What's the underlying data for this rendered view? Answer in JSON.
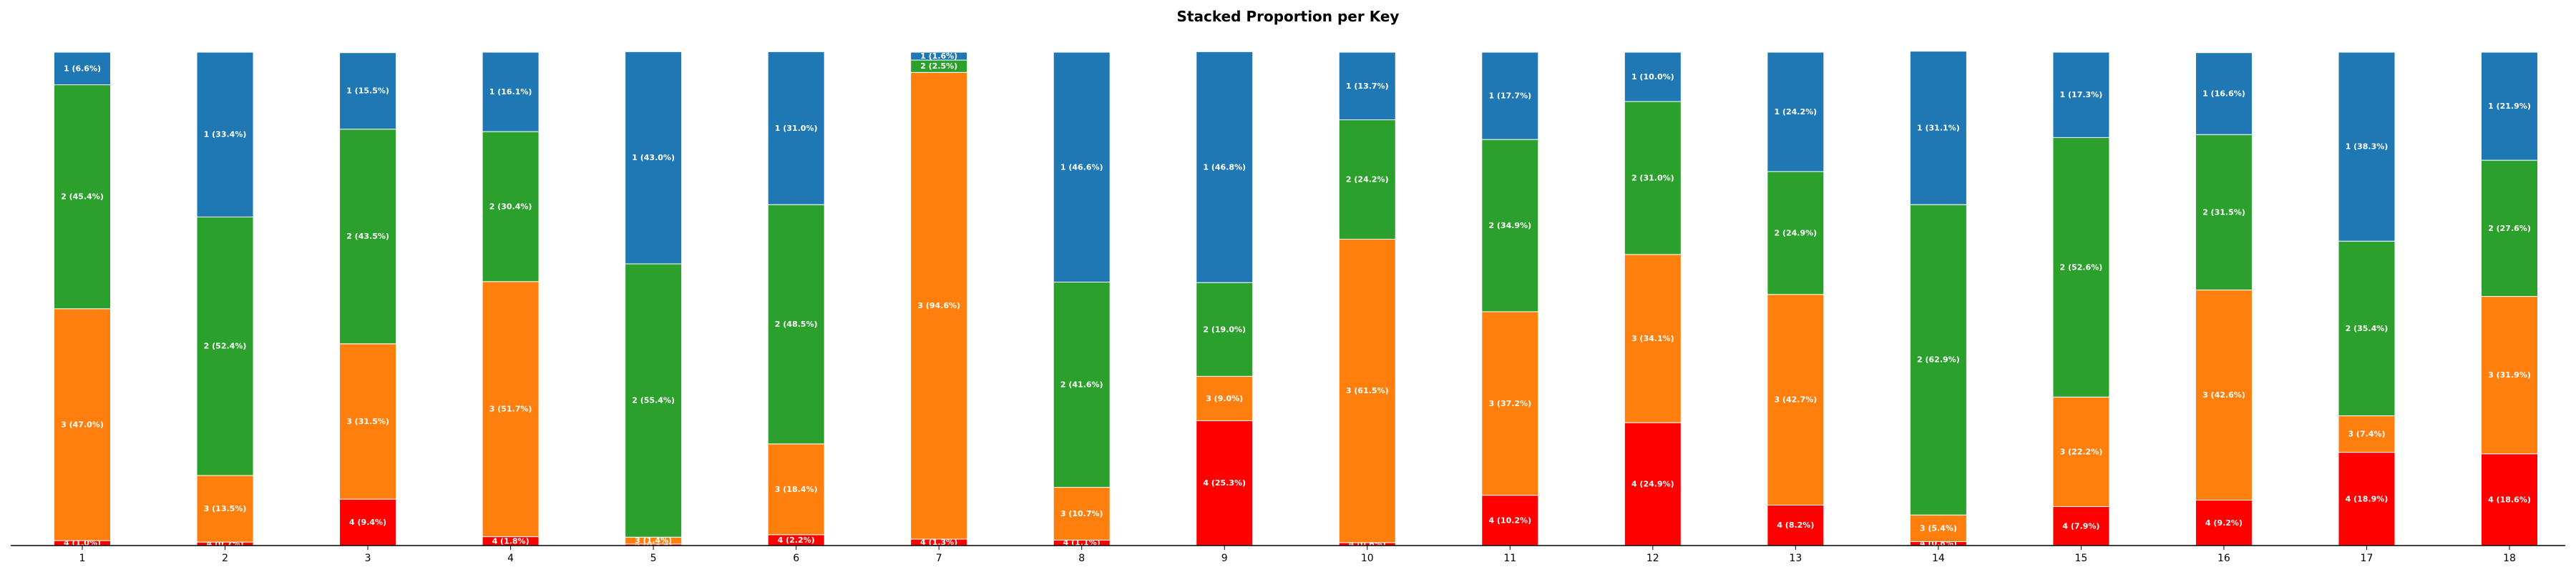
{
  "chart_data": {
    "type": "bar",
    "stacked": true,
    "title": "Stacked Proportion per Key",
    "xlabel": "",
    "ylabel": "",
    "ylim": [
      0,
      100
    ],
    "categories": [
      "1",
      "2",
      "3",
      "4",
      "5",
      "6",
      "7",
      "8",
      "9",
      "10",
      "11",
      "12",
      "13",
      "14",
      "15",
      "16",
      "17",
      "18"
    ],
    "stack_order": [
      "4",
      "3",
      "2",
      "1"
    ],
    "colors": {
      "1": "#1f77b4",
      "2": "#2ca02c",
      "3": "#ff7f0e",
      "4": "#ff0000"
    },
    "segments": [
      {
        "4": 1.0,
        "3": 47.0,
        "2": 45.4,
        "1": 6.6
      },
      {
        "4": 0.7,
        "3": 13.5,
        "2": 52.4,
        "1": 33.4
      },
      {
        "4": 9.4,
        "3": 31.5,
        "2": 43.5,
        "1": 15.5
      },
      {
        "4": 1.8,
        "3": 51.7,
        "2": 30.4,
        "1": 16.1
      },
      {
        "4": 0.3,
        "3": 1.4,
        "2": 55.4,
        "1": 43.0
      },
      {
        "4": 2.2,
        "3": 18.4,
        "2": 48.5,
        "1": 31.0
      },
      {
        "4": 1.3,
        "3": 94.6,
        "2": 2.5,
        "1": 1.6
      },
      {
        "4": 1.1,
        "3": 10.7,
        "2": 41.6,
        "1": 46.6
      },
      {
        "4": 25.3,
        "3": 9.0,
        "2": 19.0,
        "1": 46.8
      },
      {
        "4": 0.6,
        "3": 61.5,
        "2": 24.2,
        "1": 13.7
      },
      {
        "4": 10.2,
        "3": 37.2,
        "2": 34.9,
        "1": 17.7
      },
      {
        "4": 24.9,
        "3": 34.1,
        "2": 31.0,
        "1": 10.0
      },
      {
        "4": 8.2,
        "3": 42.7,
        "2": 24.9,
        "1": 24.2
      },
      {
        "4": 0.8,
        "3": 5.4,
        "2": 62.9,
        "1": 31.1
      },
      {
        "4": 7.9,
        "3": 22.2,
        "2": 52.6,
        "1": 17.3
      },
      {
        "4": 9.2,
        "3": 42.6,
        "2": 31.5,
        "1": 16.6
      },
      {
        "4": 18.9,
        "3": 7.4,
        "2": 35.4,
        "1": 38.3
      },
      {
        "4": 18.6,
        "3": 31.9,
        "2": 27.6,
        "1": 21.9
      }
    ],
    "labels": [
      {
        "4": "4 (1.0%)",
        "3": "3 (47.0%)",
        "2": "2 (45.4%)",
        "1": "1 (6.6%)"
      },
      {
        "4": "4 (0.7%)",
        "3": "3 (13.5%)",
        "2": "2 (52.4%)",
        "1": "1 (33.4%)"
      },
      {
        "4": "4 (9.4%)",
        "3": "3 (31.5%)",
        "2": "2 (43.5%)",
        "1": "1 (15.5%)"
      },
      {
        "4": "4 (1.8%)",
        "3": "3 (51.7%)",
        "2": "2 (30.4%)",
        "1": "1 (16.1%)"
      },
      {
        "4": "4 (0.3%)",
        "3": "3 (1.4%)",
        "2": "2 (55.4%)",
        "1": "1 (43.0%)"
      },
      {
        "4": "4 (2.2%)",
        "3": "3 (18.4%)",
        "2": "2 (48.5%)",
        "1": "1 (31.0%)"
      },
      {
        "4": "4 (1.3%)",
        "3": "3 (94.6%)",
        "2": "2 (2.5%)",
        "1": "1 (1.6%)"
      },
      {
        "4": "4 (1.1%)",
        "3": "3 (10.7%)",
        "2": "2 (41.6%)",
        "1": "1 (46.6%)"
      },
      {
        "4": "4 (25.3%)",
        "3": "3 (9.0%)",
        "2": "2 (19.0%)",
        "1": "1 (46.8%)"
      },
      {
        "4": "4 (0.6%)",
        "3": "3 (61.5%)",
        "2": "2 (24.2%)",
        "1": "1 (13.7%)"
      },
      {
        "4": "4 (10.2%)",
        "3": "3 (37.2%)",
        "2": "2 (34.9%)",
        "1": "1 (17.7%)"
      },
      {
        "4": "4 (24.9%)",
        "3": "3 (34.1%)",
        "2": "2 (31.0%)",
        "1": "1 (10.0%)"
      },
      {
        "4": "4 (8.2%)",
        "3": "3 (42.7%)",
        "2": "2 (24.9%)",
        "1": "1 (24.2%)"
      },
      {
        "4": "4 (0.8%)",
        "3": "3 (5.4%)",
        "2": "2 (62.9%)",
        "1": "1 (31.1%)"
      },
      {
        "4": "4 (7.9%)",
        "3": "3 (22.2%)",
        "2": "2 (52.6%)",
        "1": "1 (17.3%)"
      },
      {
        "4": "4 (9.2%)",
        "3": "3 (42.6%)",
        "2": "2 (31.5%)",
        "1": "1 (16.6%)"
      },
      {
        "4": "4 (18.9%)",
        "3": "3 (7.4%)",
        "2": "2 (35.4%)",
        "1": "1 (38.3%)"
      },
      {
        "4": "4 (18.6%)",
        "3": "3 (31.9%)",
        "2": "2 (27.6%)",
        "1": "1 (21.9%)"
      }
    ],
    "grid": false,
    "legend": "none"
  }
}
